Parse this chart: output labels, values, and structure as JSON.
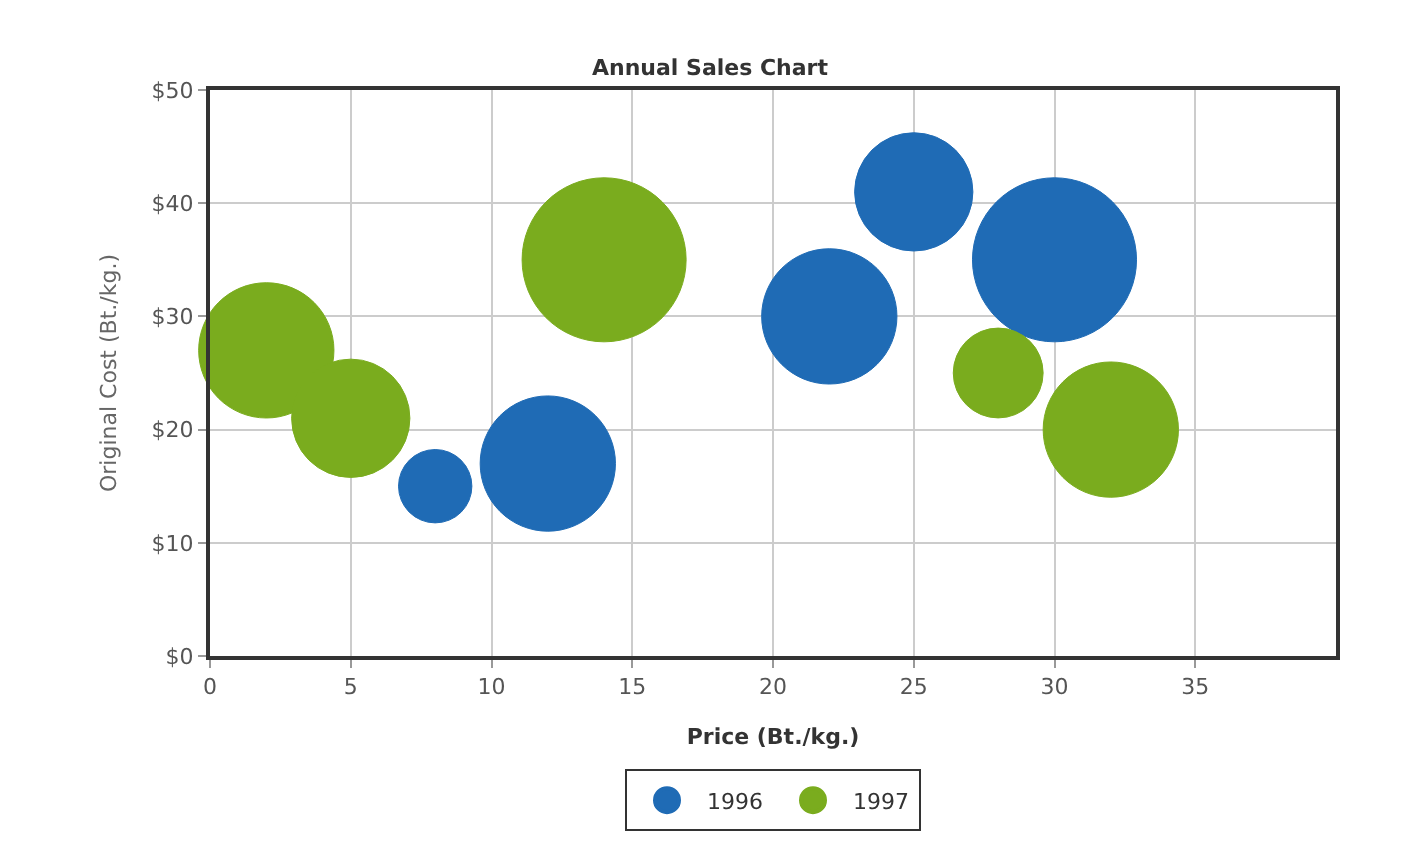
{
  "chart_data": {
    "type": "bubble",
    "title": "Annual Sales Chart",
    "xlabel": "Price (Bt./kg.)",
    "ylabel": "Original Cost (Bt./kg.)",
    "xlim": [
      0,
      40
    ],
    "xticks": [
      0,
      5,
      10,
      15,
      20,
      25,
      30,
      35
    ],
    "ylim": [
      0,
      50
    ],
    "yticks": [
      {
        "value": 0,
        "label": "$0"
      },
      {
        "value": 10,
        "label": "$10"
      },
      {
        "value": 20,
        "label": "$20"
      },
      {
        "value": 30,
        "label": "$30"
      },
      {
        "value": 40,
        "label": "$40"
      },
      {
        "value": 50,
        "label": "$50"
      }
    ],
    "series": [
      {
        "name": "1996",
        "color": "#1f6bb5",
        "x": [
          8,
          12,
          22,
          25,
          30
        ],
        "values": [
          15,
          17,
          30,
          41,
          35
        ],
        "sizes": [
          0.2,
          0.68,
          0.68,
          0.52,
          1
        ]
      },
      {
        "name": "1997",
        "color": "#7aac1e",
        "x": [
          2,
          5,
          14,
          28,
          32
        ],
        "values": [
          27,
          21,
          35,
          25,
          20
        ],
        "sizes": [
          0.68,
          0.52,
          1,
          0.3,
          0.68
        ]
      }
    ],
    "grid": true,
    "legend": "bottom",
    "marker": "circle"
  }
}
